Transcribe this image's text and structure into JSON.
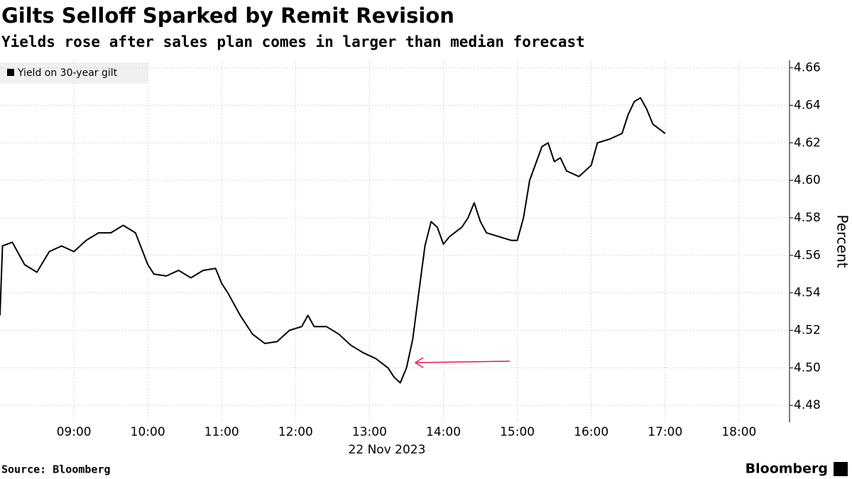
{
  "chart_data": {
    "type": "line",
    "title": "Gilts Selloff Sparked by Remit Revision",
    "subtitle": "Yields rose after sales plan comes in larger than median forecast",
    "y_label": "Percent",
    "x_label": "22 Nov 2023",
    "source": "Source: Bloomberg",
    "brand": "Bloomberg",
    "x": [
      "08:00",
      "08:02",
      "08:10",
      "08:20",
      "08:30",
      "08:40",
      "08:50",
      "09:00",
      "09:10",
      "09:20",
      "09:30",
      "09:40",
      "09:50",
      "10:00",
      "10:05",
      "10:15",
      "10:25",
      "10:35",
      "10:45",
      "10:55",
      "11:00",
      "11:05",
      "11:15",
      "11:25",
      "11:35",
      "11:45",
      "11:55",
      "12:05",
      "12:10",
      "12:15",
      "12:25",
      "12:35",
      "12:45",
      "12:55",
      "13:05",
      "13:15",
      "13:20",
      "13:25",
      "13:30",
      "13:35",
      "13:40",
      "13:45",
      "13:50",
      "13:55",
      "14:00",
      "14:05",
      "14:15",
      "14:20",
      "14:25",
      "14:30",
      "14:35",
      "14:45",
      "14:55",
      "15:00",
      "15:05",
      "15:10",
      "15:20",
      "15:25",
      "15:30",
      "15:35",
      "15:40",
      "15:50",
      "16:00",
      "16:05",
      "16:15",
      "16:25",
      "16:30",
      "16:35",
      "16:40",
      "16:45",
      "16:50",
      "17:00"
    ],
    "series": [
      {
        "name": "Yield on 30-year gilt",
        "color": "#000000",
        "values": [
          4.528,
          4.565,
          4.567,
          4.555,
          4.551,
          4.562,
          4.565,
          4.562,
          4.568,
          4.572,
          4.572,
          4.576,
          4.572,
          4.555,
          4.55,
          4.549,
          4.552,
          4.548,
          4.552,
          4.553,
          4.545,
          4.54,
          4.528,
          4.518,
          4.513,
          4.514,
          4.52,
          4.522,
          4.528,
          4.522,
          4.522,
          4.518,
          4.512,
          4.508,
          4.505,
          4.5,
          4.495,
          4.492,
          4.5,
          4.515,
          4.54,
          4.565,
          4.578,
          4.575,
          4.566,
          4.57,
          4.575,
          4.58,
          4.588,
          4.578,
          4.572,
          4.57,
          4.568,
          4.568,
          4.58,
          4.6,
          4.618,
          4.62,
          4.61,
          4.612,
          4.605,
          4.602,
          4.608,
          4.62,
          4.622,
          4.625,
          4.635,
          4.642,
          4.644,
          4.638,
          4.63,
          4.625
        ]
      }
    ],
    "xlim": [
      "08:00",
      "18:41"
    ],
    "xticks": [
      "09:00",
      "10:00",
      "11:00",
      "12:00",
      "13:00",
      "14:00",
      "15:00",
      "16:00",
      "17:00",
      "18:00"
    ],
    "ylim": [
      4.471,
      4.664
    ],
    "yticks": [
      {
        "value": 4.48,
        "label": "4.48"
      },
      {
        "value": 4.5,
        "label": "4.50"
      },
      {
        "value": 4.52,
        "label": "4.52"
      },
      {
        "value": 4.54,
        "label": "4.54"
      },
      {
        "value": 4.56,
        "label": "4.56"
      },
      {
        "value": 4.58,
        "label": "4.58"
      },
      {
        "value": 4.6,
        "label": "4.60"
      },
      {
        "value": 4.62,
        "label": "4.62"
      },
      {
        "value": 4.64,
        "label": "4.64"
      },
      {
        "value": 4.66,
        "label": "4.66"
      }
    ],
    "grid": true
  }
}
